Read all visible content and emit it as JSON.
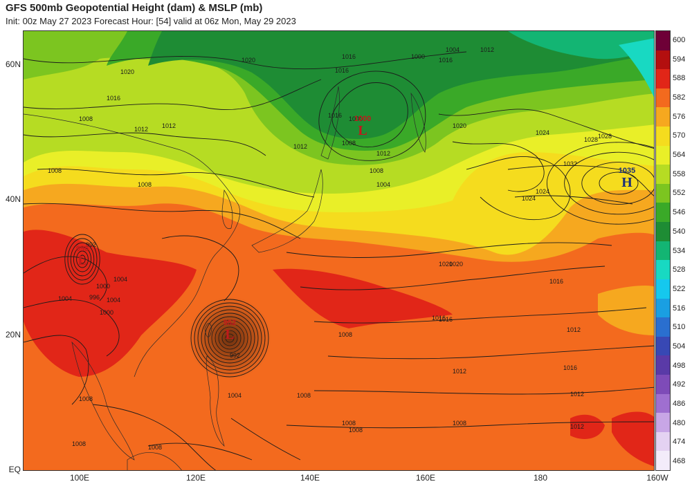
{
  "header": {
    "title": "GFS 500mb Geopotential Height (dam) & MSLP (mb)",
    "subtitle": "Init: 00z May 27 2023   Forecast Hour: [54]   valid at 06z Mon, May 29 2023"
  },
  "axes": {
    "lat_labels": [
      "60N",
      "40N",
      "20N",
      "EQ"
    ],
    "lon_labels": [
      "100E",
      "120E",
      "140E",
      "160E",
      "180",
      "160W"
    ]
  },
  "colorbar": {
    "levels": [
      "600",
      "594",
      "588",
      "582",
      "576",
      "570",
      "564",
      "558",
      "552",
      "546",
      "540",
      "534",
      "528",
      "522",
      "516",
      "510",
      "504",
      "498",
      "492",
      "486",
      "480",
      "474",
      "468"
    ],
    "colors": [
      "#6e0037",
      "#b30f0f",
      "#e12618",
      "#f36a1e",
      "#f6a81f",
      "#f5dc1e",
      "#e9ef28",
      "#b6dc23",
      "#7cc520",
      "#3aa928",
      "#1e8c34",
      "#13b573",
      "#18d9c2",
      "#15c8ee",
      "#1a9fe2",
      "#2a6fcf",
      "#3848b4",
      "#5a3aa7",
      "#7e4bb8",
      "#9f6fd0",
      "#c8a6e6",
      "#e4d2f2",
      "#f3ecfa"
    ]
  },
  "pressure_centers": [
    {
      "type": "L",
      "value": "1000",
      "color": "#c0191c"
    },
    {
      "type": "H",
      "value": "1035",
      "color": "#1a2f78"
    },
    {
      "type": "L",
      "value": "952",
      "color": "#c0191c"
    },
    {
      "type": "L",
      "value": "996",
      "color": "#c0191c"
    }
  ],
  "isobar_labels": [
    "1020",
    "1016",
    "1016",
    "1008",
    "1012",
    "1012",
    "1020",
    "1016",
    "1004",
    "1008",
    "1008",
    "1016",
    "1012",
    "1008",
    "1012",
    "1004",
    "1000",
    "1008",
    "1000",
    "1028",
    "1024",
    "1028",
    "1032",
    "1024",
    "1016",
    "1012",
    "1020",
    "1016",
    "1020",
    "1016",
    "1012",
    "1008",
    "1016",
    "1012",
    "1012",
    "1008",
    "1008",
    "1008",
    "992",
    "1004",
    "1004",
    "1000",
    "996",
    "1004",
    "1000",
    "992",
    "1004",
    "1008",
    "1008",
    "1008",
    "1008",
    "1012",
    "1016",
    "1020",
    "1024"
  ]
}
